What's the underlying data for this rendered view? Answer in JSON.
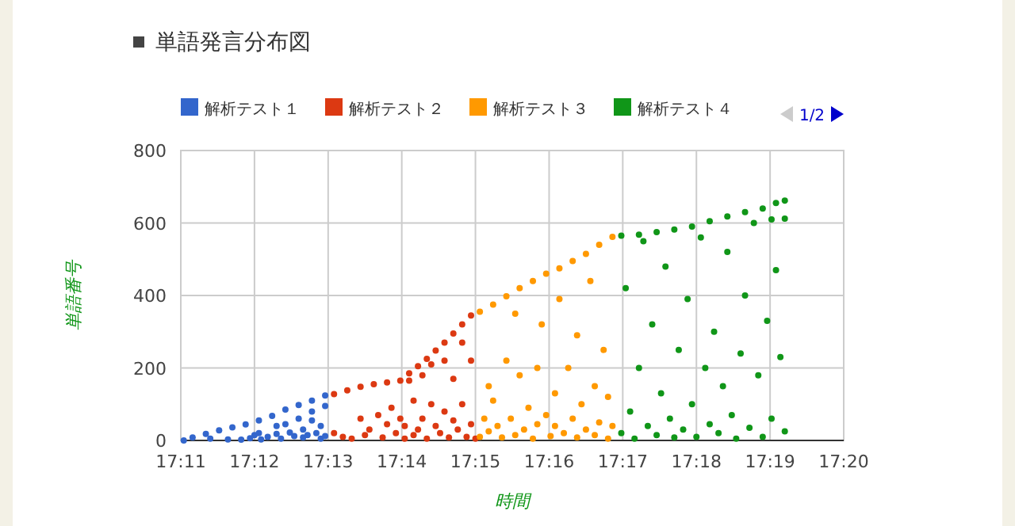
{
  "chart_data": {
    "type": "scatter",
    "title": "単語発言分布図",
    "xlabel": "時間",
    "ylabel": "単語番号",
    "legend": "top left",
    "grid": true,
    "marker": "circle",
    "xlim": [
      17.18333,
      17.33333
    ],
    "xticks": [
      {
        "value": 17.18333,
        "label": "17:11"
      },
      {
        "value": 17.2,
        "label": "17:12"
      },
      {
        "value": 17.21667,
        "label": "17:13"
      },
      {
        "value": 17.23333,
        "label": "17:14"
      },
      {
        "value": 17.25,
        "label": "17:15"
      },
      {
        "value": 17.26667,
        "label": "17:16"
      },
      {
        "value": 17.28333,
        "label": "17:17"
      },
      {
        "value": 17.3,
        "label": "17:18"
      },
      {
        "value": 17.31667,
        "label": "17:19"
      },
      {
        "value": 17.33333,
        "label": "17:20"
      }
    ],
    "ylim": [
      0,
      800
    ],
    "yticks": [
      0,
      200,
      400,
      600,
      800
    ],
    "annotations": [
      "1/2"
    ],
    "series": [
      {
        "name": "解析テスト１",
        "color": "#3366cc",
        "x": [
          17.184,
          17.186,
          17.189,
          17.192,
          17.195,
          17.198,
          17.201,
          17.204,
          17.207,
          17.21,
          17.213,
          17.216,
          17.19,
          17.194,
          17.197,
          17.2,
          17.201,
          17.203,
          17.205,
          17.206,
          17.207,
          17.208,
          17.209,
          17.21,
          17.211,
          17.211,
          17.212,
          17.213,
          17.213,
          17.214,
          17.215,
          17.215,
          17.216,
          17.216,
          17.205,
          17.2015,
          17.199
        ],
        "values": [
          0,
          8,
          18,
          28,
          36,
          44,
          55,
          68,
          85,
          98,
          110,
          124,
          5,
          3,
          2,
          15,
          20,
          10,
          18,
          5,
          45,
          22,
          12,
          60,
          30,
          8,
          15,
          55,
          80,
          20,
          5,
          40,
          95,
          12,
          40,
          3,
          6
        ]
      },
      {
        "name": "解析テスト２",
        "color": "#dc3912",
        "x": [
          17.218,
          17.221,
          17.224,
          17.227,
          17.23,
          17.233,
          17.235,
          17.237,
          17.239,
          17.241,
          17.243,
          17.245,
          17.247,
          17.249,
          17.218,
          17.22,
          17.222,
          17.224,
          17.225,
          17.226,
          17.228,
          17.229,
          17.23,
          17.231,
          17.232,
          17.233,
          17.234,
          17.234,
          17.235,
          17.236,
          17.236,
          17.237,
          17.238,
          17.238,
          17.239,
          17.24,
          17.24,
          17.241,
          17.242,
          17.243,
          17.243,
          17.244,
          17.245,
          17.245,
          17.246,
          17.247,
          17.247,
          17.248,
          17.249,
          17.249,
          17.25
        ],
        "values": [
          128,
          138,
          148,
          155,
          160,
          165,
          185,
          205,
          225,
          248,
          270,
          295,
          320,
          345,
          20,
          10,
          5,
          60,
          15,
          30,
          70,
          8,
          45,
          90,
          20,
          60,
          5,
          40,
          165,
          110,
          15,
          30,
          180,
          60,
          5,
          210,
          100,
          40,
          20,
          220,
          80,
          8,
          170,
          55,
          30,
          270,
          100,
          10,
          220,
          45,
          5
        ]
      },
      {
        "name": "解析テスト３",
        "color": "#ff9900",
        "x": [
          17.251,
          17.254,
          17.257,
          17.26,
          17.263,
          17.266,
          17.269,
          17.272,
          17.275,
          17.278,
          17.281,
          17.251,
          17.252,
          17.253,
          17.253,
          17.254,
          17.255,
          17.256,
          17.257,
          17.258,
          17.259,
          17.259,
          17.26,
          17.261,
          17.262,
          17.263,
          17.264,
          17.264,
          17.265,
          17.266,
          17.267,
          17.268,
          17.268,
          17.269,
          17.27,
          17.271,
          17.272,
          17.273,
          17.273,
          17.274,
          17.275,
          17.276,
          17.277,
          17.277,
          17.278,
          17.279,
          17.28,
          17.28,
          17.281
        ],
        "values": [
          355,
          375,
          398,
          420,
          440,
          460,
          475,
          495,
          515,
          540,
          562,
          10,
          60,
          150,
          25,
          110,
          40,
          8,
          220,
          60,
          350,
          15,
          180,
          30,
          90,
          5,
          200,
          45,
          320,
          70,
          12,
          130,
          40,
          390,
          20,
          200,
          60,
          8,
          290,
          100,
          30,
          440,
          150,
          15,
          50,
          250,
          120,
          5,
          40
        ]
      },
      {
        "name": "解析テスト４",
        "color": "#109618",
        "x": [
          17.283,
          17.287,
          17.291,
          17.295,
          17.299,
          17.303,
          17.307,
          17.311,
          17.315,
          17.318,
          17.32,
          17.283,
          17.284,
          17.285,
          17.286,
          17.287,
          17.288,
          17.289,
          17.29,
          17.291,
          17.292,
          17.293,
          17.294,
          17.295,
          17.296,
          17.297,
          17.298,
          17.299,
          17.3,
          17.301,
          17.302,
          17.303,
          17.304,
          17.305,
          17.306,
          17.307,
          17.308,
          17.309,
          17.31,
          17.311,
          17.312,
          17.313,
          17.314,
          17.315,
          17.316,
          17.317,
          17.317,
          17.318,
          17.319,
          17.32,
          17.32
        ],
        "values": [
          565,
          568,
          575,
          582,
          590,
          605,
          618,
          630,
          640,
          655,
          662,
          20,
          420,
          80,
          5,
          200,
          550,
          40,
          320,
          15,
          130,
          480,
          60,
          8,
          250,
          30,
          390,
          100,
          10,
          560,
          200,
          45,
          300,
          20,
          150,
          520,
          70,
          5,
          240,
          400,
          35,
          600,
          180,
          10,
          330,
          610,
          60,
          470,
          230,
          612,
          25
        ]
      }
    ]
  }
}
